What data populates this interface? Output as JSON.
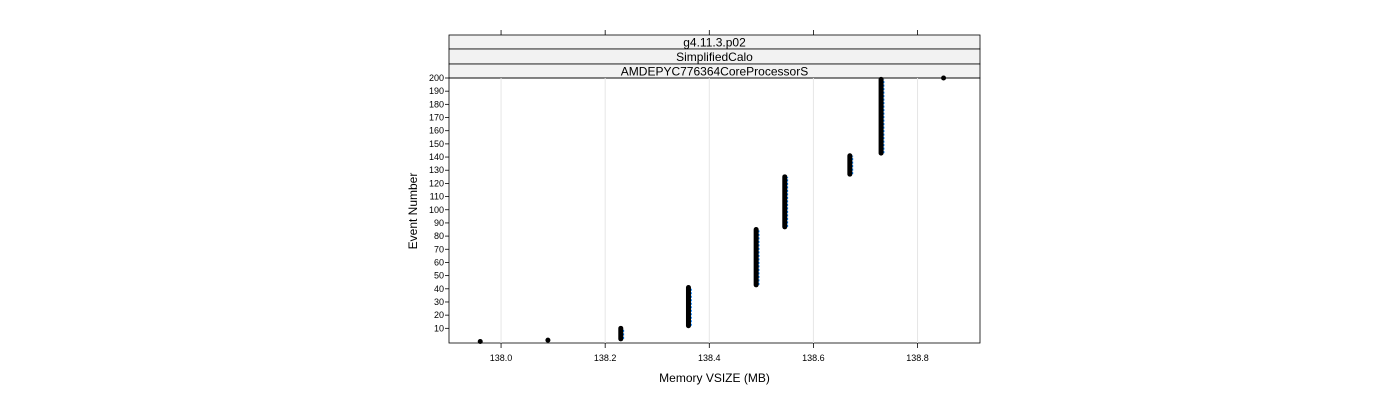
{
  "chart_data": {
    "type": "scatter",
    "strips": [
      "g4.11.3.p02",
      "SimplifiedCalo",
      "AMDEPYC776364CoreProcessorS"
    ],
    "xlabel": "Memory VSIZE (MB)",
    "ylabel": "Event Number",
    "xlim": [
      137.9,
      138.92
    ],
    "ylim": [
      0,
      200
    ],
    "x_ticks": [
      138.0,
      138.2,
      138.4,
      138.6,
      138.8
    ],
    "x_tick_labels": [
      "138.0",
      "138.2",
      "138.4",
      "138.6",
      "138.8"
    ],
    "y_ticks": [
      10,
      20,
      30,
      40,
      50,
      60,
      70,
      80,
      90,
      100,
      110,
      120,
      130,
      140,
      150,
      160,
      170,
      180,
      190,
      200
    ],
    "y_tick_labels": [
      "10",
      "20",
      "30",
      "40",
      "50",
      "60",
      "70",
      "80",
      "90",
      "100",
      "110",
      "120",
      "130",
      "140",
      "150",
      "160",
      "170",
      "180",
      "190",
      "200"
    ],
    "grid": "vertical",
    "series": [
      {
        "color": "#000000",
        "points": [
          {
            "x": 137.96,
            "y_from": 0,
            "y_to": 0
          },
          {
            "x": 138.09,
            "y_from": 1,
            "y_to": 1
          },
          {
            "x": 138.23,
            "y_from": 2,
            "y_to": 10
          },
          {
            "x": 138.36,
            "y_from": 12,
            "y_to": 41
          },
          {
            "x": 138.49,
            "y_from": 43,
            "y_to": 85
          },
          {
            "x": 138.545,
            "y_from": 87,
            "y_to": 125
          },
          {
            "x": 138.67,
            "y_from": 127,
            "y_to": 141
          },
          {
            "x": 138.73,
            "y_from": 143,
            "y_to": 199
          },
          {
            "x": 138.85,
            "y_from": 200,
            "y_to": 200
          }
        ]
      },
      {
        "color": "#0080ff",
        "points": [
          {
            "x": 138.235,
            "y_from": 2,
            "y_to": 10
          },
          {
            "x": 138.365,
            "y_from": 12,
            "y_to": 41
          },
          {
            "x": 138.495,
            "y_from": 43,
            "y_to": 85
          },
          {
            "x": 138.55,
            "y_from": 87,
            "y_to": 125
          },
          {
            "x": 138.675,
            "y_from": 127,
            "y_to": 141
          },
          {
            "x": 138.735,
            "y_from": 143,
            "y_to": 199
          }
        ]
      }
    ]
  }
}
